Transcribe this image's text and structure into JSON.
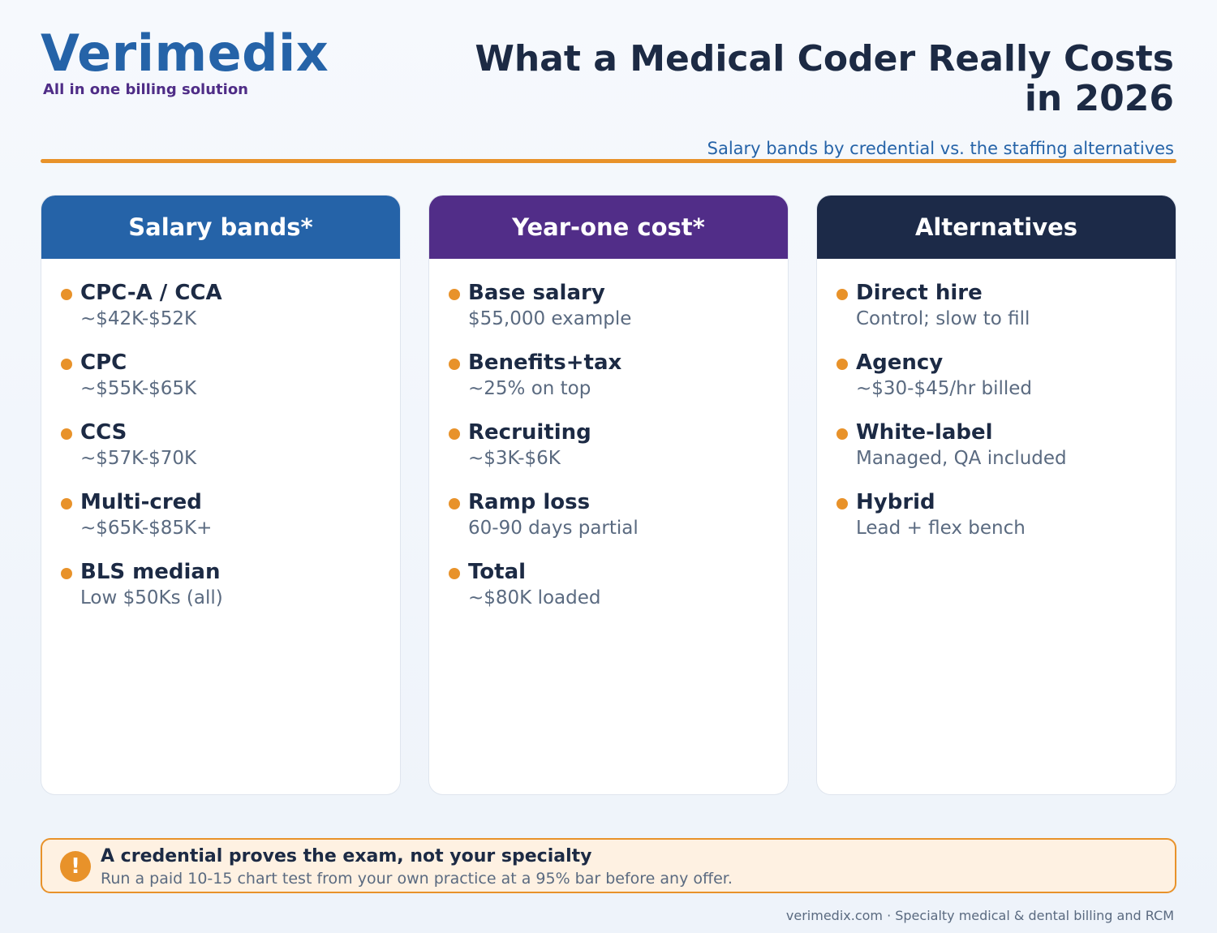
{
  "brand": {
    "name": "Verimedix",
    "tagline": "All in one billing solution"
  },
  "header": {
    "title_line1": "What a Medical Coder Really Costs",
    "title_line2": "in 2026",
    "subtitle": "Salary bands by credential vs. the staffing alternatives"
  },
  "columns": [
    {
      "title": "Salary bands*",
      "items": [
        {
          "title": "CPC-A / CCA",
          "desc": "~$42K-$52K"
        },
        {
          "title": "CPC",
          "desc": "~$55K-$65K"
        },
        {
          "title": "CCS",
          "desc": "~$57K-$70K"
        },
        {
          "title": "Multi-cred",
          "desc": "~$65K-$85K+"
        },
        {
          "title": "BLS median",
          "desc": "Low $50Ks (all)"
        }
      ]
    },
    {
      "title": "Year-one cost*",
      "items": [
        {
          "title": "Base salary",
          "desc": "$55,000 example"
        },
        {
          "title": "Benefits+tax",
          "desc": "~25% on top"
        },
        {
          "title": "Recruiting",
          "desc": "~$3K-$6K"
        },
        {
          "title": "Ramp loss",
          "desc": "60-90 days partial"
        },
        {
          "title": "Total",
          "desc": "~$80K loaded"
        }
      ]
    },
    {
      "title": "Alternatives",
      "items": [
        {
          "title": "Direct hire",
          "desc": "Control; slow to fill"
        },
        {
          "title": "Agency",
          "desc": "~$30-$45/hr billed"
        },
        {
          "title": "White-label",
          "desc": "Managed, QA included"
        },
        {
          "title": "Hybrid",
          "desc": "Lead + flex bench"
        }
      ]
    }
  ],
  "callout": {
    "icon": "exclamation-icon",
    "icon_glyph": "!",
    "title": "A credential proves the exam, not your specialty",
    "text": "Run a paid 10-15 chart test from your own practice at a 95% bar before any offer."
  },
  "footer": {
    "text": "verimedix.com · Specialty medical & dental billing and RCM"
  },
  "colors": {
    "brand_blue": "#2563a8",
    "brand_purple": "#512d88",
    "navy": "#1c2a48",
    "accent_orange": "#e8922a"
  }
}
